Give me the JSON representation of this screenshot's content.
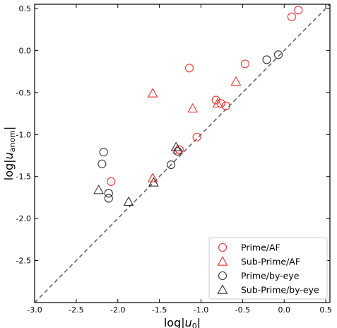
{
  "chart_data": {
    "type": "scatter",
    "title": "",
    "xlabel": "log|u₀|",
    "ylabel": "log|u_anom|",
    "xlabel_parts": {
      "main": "log|",
      "var": "u",
      "sub": "0",
      "end": "|"
    },
    "ylabel_parts": {
      "main": "log|",
      "var": "u",
      "sub": "anom",
      "end": "|"
    },
    "xlim": [
      -3.0,
      0.55
    ],
    "ylim": [
      -3.0,
      0.55
    ],
    "xticks": [
      -3.0,
      -2.5,
      -2.0,
      -1.5,
      -1.0,
      -0.5,
      0.0,
      0.5
    ],
    "xtick_labels": [
      "-3.0",
      "-2.5",
      "-2.0",
      "-1.5",
      "-1.0",
      "-0.5",
      "0.0",
      "0.5"
    ],
    "yticks": [
      0.5,
      0.0,
      -0.5,
      -1.0,
      -1.5,
      -2.0,
      -2.5
    ],
    "ytick_labels": [
      "0.5",
      "0.0",
      "-0.5",
      "-1.0",
      "-1.5",
      "-2.0",
      "-2.5"
    ],
    "grid": false,
    "legend_position": "bottom-right",
    "reference_line": {
      "style": "dashed",
      "color": "#666666",
      "slope": 1,
      "intercept": 0
    },
    "series": [
      {
        "name": "Prime/AF",
        "marker": "circle",
        "color": "#e8322d",
        "points": [
          [
            0.17,
            0.48
          ],
          [
            0.09,
            0.4
          ],
          [
            -0.47,
            -0.16
          ],
          [
            -1.14,
            -0.21
          ],
          [
            -0.82,
            -0.59
          ],
          [
            -0.76,
            -0.63
          ],
          [
            -0.7,
            -0.66
          ],
          [
            -1.05,
            -1.03
          ],
          [
            -1.26,
            -1.18
          ],
          [
            -2.08,
            -1.56
          ]
        ]
      },
      {
        "name": "Sub-Prime/AF",
        "marker": "triangle",
        "color": "#e8322d",
        "points": [
          [
            -1.58,
            -0.51
          ],
          [
            -1.1,
            -0.69
          ],
          [
            -0.58,
            -0.37
          ],
          [
            -0.8,
            -0.63
          ],
          [
            -1.58,
            -1.52
          ],
          [
            -1.28,
            -1.18
          ]
        ]
      },
      {
        "name": "Prime/by-eye",
        "marker": "circle",
        "color": "#333333",
        "points": [
          [
            -0.07,
            -0.05
          ],
          [
            -0.21,
            -0.11
          ],
          [
            -2.17,
            -1.21
          ],
          [
            -2.19,
            -1.35
          ],
          [
            -2.11,
            -1.7
          ],
          [
            -2.11,
            -1.76
          ],
          [
            -1.36,
            -1.36
          ],
          [
            -1.28,
            -1.2
          ]
        ]
      },
      {
        "name": "Sub-Prime/by-eye",
        "marker": "triangle",
        "color": "#333333",
        "points": [
          [
            -2.23,
            -1.66
          ],
          [
            -1.87,
            -1.8
          ],
          [
            -1.57,
            -1.57
          ],
          [
            -1.3,
            -1.15
          ]
        ]
      }
    ]
  }
}
